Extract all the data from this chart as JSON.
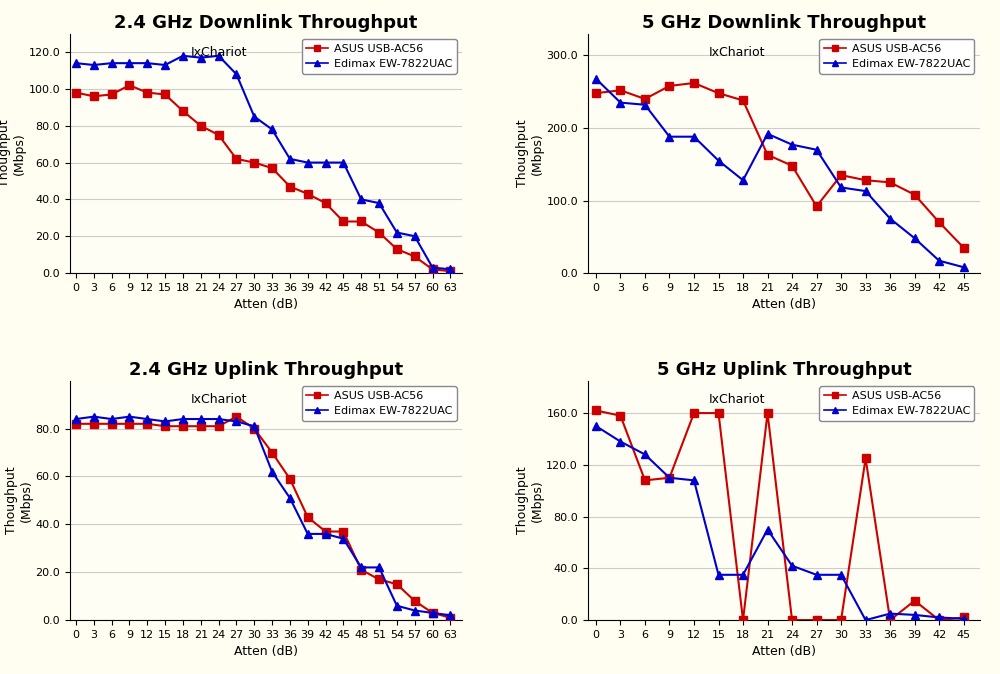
{
  "bg_color": "#fffef0",
  "plot_bg_color": "#fffef5",
  "grid_color": "#cccccc",
  "line_width": 1.5,
  "marker_size": 6,
  "legend_font_size": 8,
  "axis_label_font_size": 9,
  "tick_font_size": 8,
  "title_font_size": 13,
  "ixchariot_font_size": 9,
  "plots": [
    {
      "title": "2.4 GHz Downlink Throughput",
      "xlabel": "Atten (dB)",
      "ylabel": "Thoughput\n(Mbps)",
      "ixchariot_label": "IxChariot",
      "xlim": [
        -1,
        65
      ],
      "ylim": [
        0.0,
        130
      ],
      "yticks": [
        0.0,
        20.0,
        40.0,
        60.0,
        80.0,
        100.0,
        120.0
      ],
      "xticks": [
        0,
        3,
        6,
        9,
        12,
        15,
        18,
        21,
        24,
        27,
        30,
        33,
        36,
        39,
        42,
        45,
        48,
        51,
        54,
        57,
        60,
        63
      ],
      "series": [
        {
          "label": "ASUS USB-AC56",
          "color": "#cc0000",
          "marker": "s",
          "x": [
            0,
            3,
            6,
            9,
            12,
            15,
            18,
            21,
            24,
            27,
            30,
            33,
            36,
            39,
            42,
            45,
            48,
            51,
            54,
            57,
            60,
            63
          ],
          "y": [
            98,
            96,
            97,
            102,
            98,
            97,
            88,
            80,
            75,
            62,
            60,
            57,
            47,
            43,
            38,
            28,
            28,
            22,
            13,
            9,
            2,
            1
          ]
        },
        {
          "label": "Edimax EW-7822UAC",
          "color": "#0000cc",
          "marker": "^",
          "x": [
            0,
            3,
            6,
            9,
            12,
            15,
            18,
            21,
            24,
            27,
            30,
            33,
            36,
            39,
            42,
            45,
            48,
            51,
            54,
            57,
            60,
            63
          ],
          "y": [
            114,
            113,
            114,
            114,
            114,
            113,
            118,
            117,
            118,
            108,
            85,
            78,
            62,
            60,
            60,
            60,
            40,
            38,
            22,
            20,
            3,
            2
          ]
        }
      ]
    },
    {
      "title": "5 GHz Downlink Throughput",
      "xlabel": "Atten (dB)",
      "ylabel": "Thoughput\n(Mbps)",
      "ixchariot_label": "IxChariot",
      "xlim": [
        -1,
        47
      ],
      "ylim": [
        0.0,
        330
      ],
      "yticks": [
        0.0,
        100.0,
        200.0,
        300.0
      ],
      "xticks": [
        0,
        3,
        6,
        9,
        12,
        15,
        18,
        21,
        24,
        27,
        30,
        33,
        36,
        39,
        42,
        45
      ],
      "series": [
        {
          "label": "ASUS USB-AC56",
          "color": "#cc0000",
          "marker": "s",
          "x": [
            0,
            3,
            6,
            9,
            12,
            15,
            18,
            21,
            24,
            27,
            30,
            33,
            36,
            39,
            42,
            45
          ],
          "y": [
            248,
            252,
            240,
            258,
            262,
            248,
            238,
            163,
            148,
            92,
            135,
            128,
            125,
            108,
            70,
            35
          ]
        },
        {
          "label": "Edimax EW-7822UAC",
          "color": "#0000cc",
          "marker": "^",
          "x": [
            0,
            3,
            6,
            9,
            12,
            15,
            18,
            21,
            24,
            27,
            30,
            33,
            36,
            39,
            42,
            45
          ],
          "y": [
            268,
            235,
            232,
            188,
            188,
            155,
            128,
            192,
            177,
            170,
            118,
            113,
            75,
            48,
            17,
            8
          ]
        }
      ]
    },
    {
      "title": "2.4 GHz Uplink Throughput",
      "xlabel": "Atten (dB)",
      "ylabel": "Thoughput\n(Mbps)",
      "ixchariot_label": "IxChariot",
      "xlim": [
        -1,
        65
      ],
      "ylim": [
        0.0,
        100
      ],
      "yticks": [
        0.0,
        20.0,
        40.0,
        60.0,
        80.0
      ],
      "xticks": [
        0,
        3,
        6,
        9,
        12,
        15,
        18,
        21,
        24,
        27,
        30,
        33,
        36,
        39,
        42,
        45,
        48,
        51,
        54,
        57,
        60,
        63
      ],
      "series": [
        {
          "label": "ASUS USB-AC56",
          "color": "#cc0000",
          "marker": "s",
          "x": [
            0,
            3,
            6,
            9,
            12,
            15,
            18,
            21,
            24,
            27,
            30,
            33,
            36,
            39,
            42,
            45,
            48,
            51,
            54,
            57,
            60,
            63
          ],
          "y": [
            82,
            82,
            82,
            82,
            82,
            81,
            81,
            81,
            81,
            85,
            80,
            70,
            59,
            43,
            37,
            37,
            21,
            17,
            15,
            8,
            3,
            1
          ]
        },
        {
          "label": "Edimax EW-7822UAC",
          "color": "#0000cc",
          "marker": "^",
          "x": [
            0,
            3,
            6,
            9,
            12,
            15,
            18,
            21,
            24,
            27,
            30,
            33,
            36,
            39,
            42,
            45,
            48,
            51,
            54,
            57,
            60,
            63
          ],
          "y": [
            84,
            85,
            84,
            85,
            84,
            83,
            84,
            84,
            84,
            83,
            81,
            62,
            51,
            36,
            36,
            34,
            22,
            22,
            6,
            4,
            3,
            2
          ]
        }
      ]
    },
    {
      "title": "5 GHz Uplink Throughput",
      "xlabel": "Atten (dB)",
      "ylabel": "Thoughput\n(Mbps)",
      "ixchariot_label": "IxChariot",
      "xlim": [
        -1,
        47
      ],
      "ylim": [
        0.0,
        185
      ],
      "yticks": [
        0.0,
        40.0,
        80.0,
        120.0,
        160.0
      ],
      "xticks": [
        0,
        3,
        6,
        9,
        12,
        15,
        18,
        21,
        24,
        27,
        30,
        33,
        36,
        39,
        42,
        45
      ],
      "series": [
        {
          "label": "ASUS USB-AC56",
          "color": "#cc0000",
          "marker": "s",
          "x": [
            0,
            3,
            6,
            9,
            12,
            15,
            18,
            21,
            24,
            27,
            30,
            33,
            36,
            39,
            42,
            45
          ],
          "y": [
            162,
            158,
            108,
            110,
            160,
            160,
            0,
            160,
            0,
            0,
            0,
            125,
            0,
            15,
            0,
            2
          ]
        },
        {
          "label": "Edimax EW-7822UAC",
          "color": "#0000cc",
          "marker": "^",
          "x": [
            0,
            3,
            6,
            9,
            12,
            15,
            18,
            21,
            24,
            27,
            30,
            33,
            36,
            39,
            42,
            45
          ],
          "y": [
            150,
            138,
            128,
            110,
            108,
            35,
            35,
            70,
            42,
            35,
            35,
            0,
            5,
            4,
            2,
            1
          ]
        }
      ]
    }
  ]
}
